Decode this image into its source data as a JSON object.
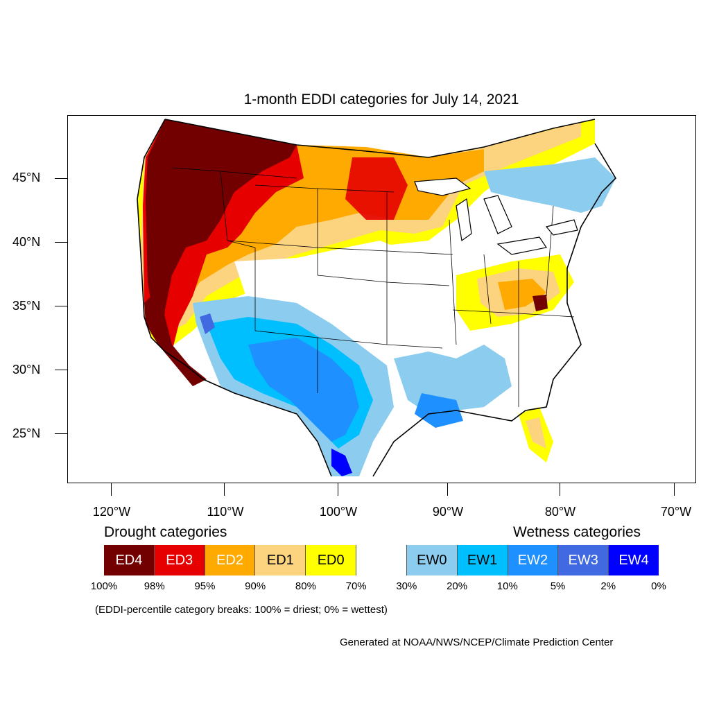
{
  "title": "1-month EDDI categories for July 14, 2021",
  "lat_labels": [
    "45°N",
    "40°N",
    "35°N",
    "30°N",
    "25°N"
  ],
  "lon_labels": [
    "120°W",
    "110°W",
    "100°W",
    "90°W",
    "80°W",
    "70°W"
  ],
  "legend": {
    "drought_heading": "Drought categories",
    "wetness_heading": "Wetness categories",
    "categories": [
      {
        "label": "ED4",
        "color": "#730000",
        "text_color": "#ffffff"
      },
      {
        "label": "ED3",
        "color": "#e60000",
        "text_color": "#ffffff"
      },
      {
        "label": "ED2",
        "color": "#ffaa00",
        "text_color": "#ffffff"
      },
      {
        "label": "ED1",
        "color": "#fcd37f",
        "text_color": "#000000"
      },
      {
        "label": "ED0",
        "color": "#ffff00",
        "text_color": "#000000"
      },
      {
        "label": "",
        "color": "#ffffff",
        "text_color": "#000000"
      },
      {
        "label": "EW0",
        "color": "#8ccdef",
        "text_color": "#000000"
      },
      {
        "label": "EW1",
        "color": "#00bfff",
        "text_color": "#000000"
      },
      {
        "label": "EW2",
        "color": "#1e90ff",
        "text_color": "#ffffff"
      },
      {
        "label": "EW3",
        "color": "#4169e1",
        "text_color": "#ffffff"
      },
      {
        "label": "EW4",
        "color": "#0000ff",
        "text_color": "#ffffff"
      }
    ],
    "percent_breaks": [
      "100%",
      "98%",
      "95%",
      "90%",
      "80%",
      "70%",
      "30%",
      "20%",
      "10%",
      "5%",
      "2%",
      "0%"
    ]
  },
  "note": "(EDDI-percentile category breaks: 100% = driest; 0% = wettest)",
  "credit": "Generated at NOAA/NWS/NCEP/Climate Prediction Center"
}
